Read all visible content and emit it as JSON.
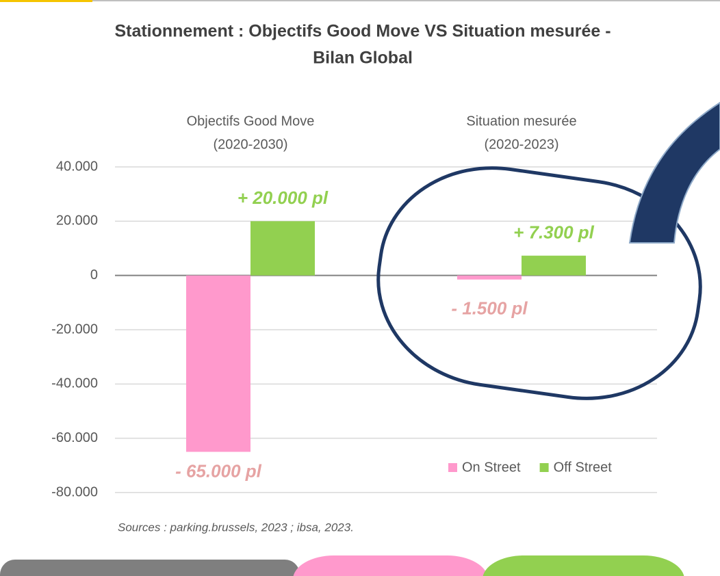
{
  "chart_data": {
    "type": "bar",
    "title": [
      "Stationnement : Objectifs Good Move VS Situation mesurée -",
      "Bilan Global"
    ],
    "categories": [
      [
        "Objectifs Good Move",
        "(2020-2030)"
      ],
      [
        "Situation mesurée",
        "(2020-2023)"
      ]
    ],
    "series": [
      {
        "name": "On Street",
        "color": "#ff99cc",
        "values": [
          -65000,
          -1500
        ],
        "value_labels": [
          "- 65.000 pl",
          "- 1.500 pl"
        ],
        "label_color": "#e6a3a3"
      },
      {
        "name": "Off Street",
        "color": "#92d050",
        "values": [
          20000,
          7300
        ],
        "value_labels": [
          "+ 20.000 pl",
          "+ 7.300 pl"
        ],
        "label_color": "#92d050"
      }
    ],
    "ylim": [
      -80000,
      40000
    ],
    "yticks": [
      {
        "value": -80000,
        "label": "-80.000"
      },
      {
        "value": -60000,
        "label": "-60.000"
      },
      {
        "value": -40000,
        "label": "-40.000"
      },
      {
        "value": -20000,
        "label": "-20.000"
      },
      0,
      {
        "value": 20000,
        "label": "20.000"
      },
      {
        "value": 40000,
        "label": "40.000"
      }
    ],
    "grid": true,
    "legend": "bottom-right",
    "source": "Sources : parking.brussels, 2023 ; ibsa, 2023."
  }
}
